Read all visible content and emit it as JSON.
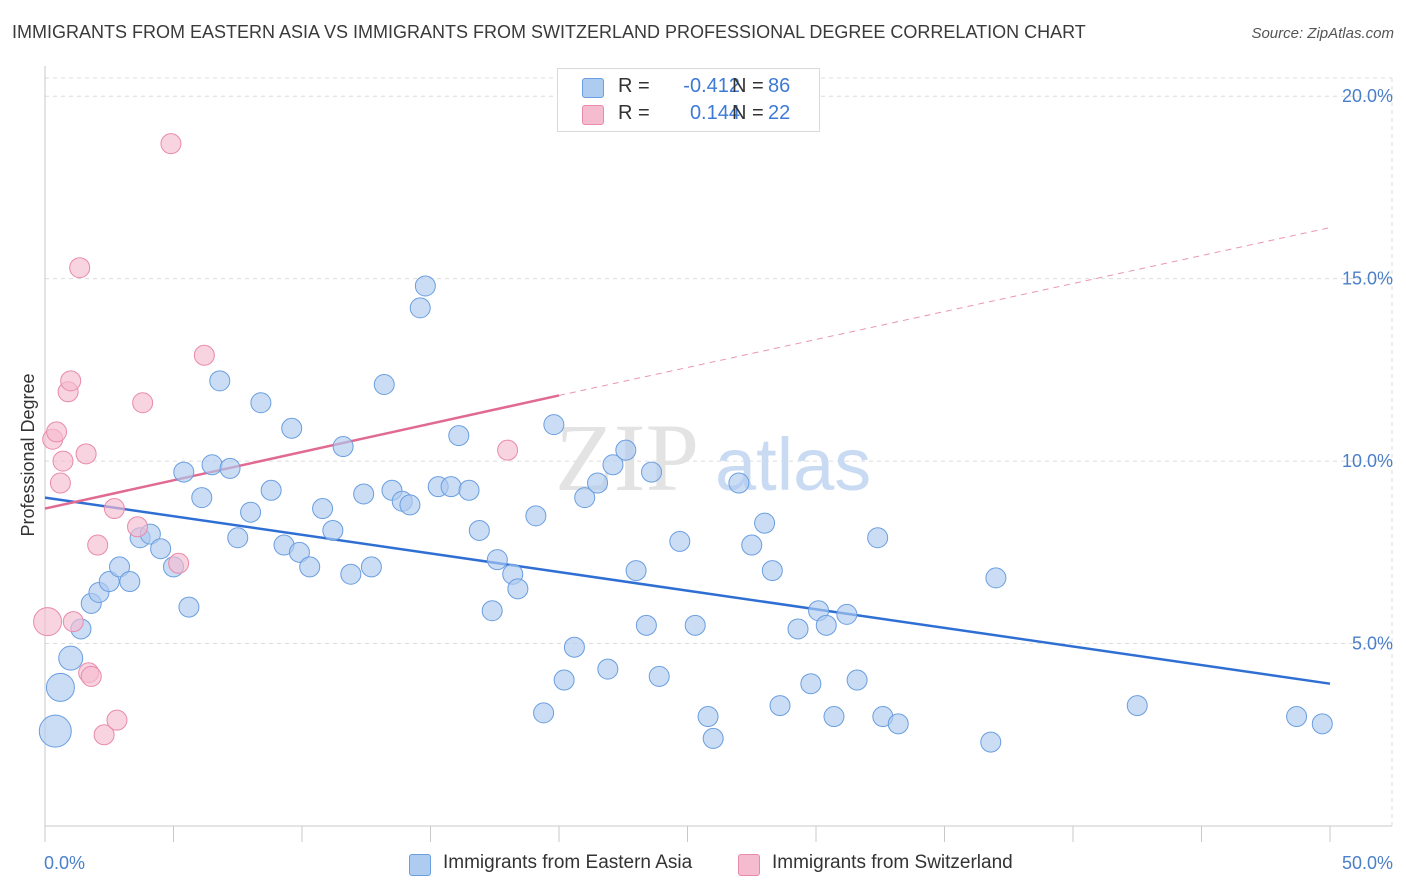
{
  "title": "IMMIGRANTS FROM EASTERN ASIA VS IMMIGRANTS FROM SWITZERLAND PROFESSIONAL DEGREE CORRELATION CHART",
  "source": "Source: ZipAtlas.com",
  "watermark": "ZIPatlas",
  "legend": {
    "rows": [
      {
        "r_label": "R =",
        "r_value": "-0.412",
        "n_label": "N =",
        "n_value": "86"
      },
      {
        "r_label": "R =",
        "r_value": "0.144",
        "n_label": "N =",
        "n_value": "22"
      }
    ]
  },
  "bottom_legend": {
    "items": [
      {
        "label": "Immigrants from Eastern Asia"
      },
      {
        "label": "Immigrants from Switzerland"
      }
    ]
  },
  "colors": {
    "blue_fill": "#aecbf0",
    "blue_stroke": "#6a9ee0",
    "blue_line": "#2f6fd4",
    "pink_fill": "#f5bcd0",
    "pink_stroke": "#e98aab",
    "pink_line": "#e06a92",
    "tick_text": "#4a7fc9",
    "grid": "#dcdcdc"
  },
  "chart_data": {
    "type": "scatter",
    "xlabel": "",
    "ylabel": "Professional Degree",
    "xlim": [
      0,
      50
    ],
    "ylim": [
      0,
      20.5
    ],
    "x_tick_labels": [
      {
        "value": 0,
        "label": "0.0%"
      },
      {
        "value": 50,
        "label": "50.0%"
      }
    ],
    "y_tick_labels": [
      {
        "value": 5,
        "label": "5.0%"
      },
      {
        "value": 10,
        "label": "10.0%"
      },
      {
        "value": 15,
        "label": "15.0%"
      },
      {
        "value": 20,
        "label": "20.0%"
      }
    ],
    "grid": true,
    "legend_position": "top-center",
    "series": [
      {
        "name": "Immigrants from Eastern Asia",
        "color": "#aecbf0",
        "points": [
          [
            0.4,
            2.6,
            16
          ],
          [
            0.6,
            3.8,
            14
          ],
          [
            1.0,
            4.6,
            12
          ],
          [
            1.4,
            5.4,
            10
          ],
          [
            1.8,
            6.1,
            10
          ],
          [
            2.1,
            6.4,
            10
          ],
          [
            2.5,
            6.7,
            10
          ],
          [
            2.9,
            7.1,
            10
          ],
          [
            3.3,
            6.7,
            10
          ],
          [
            3.7,
            7.9,
            10
          ],
          [
            4.1,
            8.0,
            10
          ],
          [
            4.5,
            7.6,
            10
          ],
          [
            5.0,
            7.1,
            10
          ],
          [
            5.4,
            9.7,
            10
          ],
          [
            5.6,
            6.0,
            10
          ],
          [
            6.1,
            9.0,
            10
          ],
          [
            6.5,
            9.9,
            10
          ],
          [
            6.8,
            12.2,
            10
          ],
          [
            7.2,
            9.8,
            10
          ],
          [
            7.5,
            7.9,
            10
          ],
          [
            8.0,
            8.6,
            10
          ],
          [
            8.4,
            11.6,
            10
          ],
          [
            8.8,
            9.2,
            10
          ],
          [
            9.3,
            7.7,
            10
          ],
          [
            9.6,
            10.9,
            10
          ],
          [
            9.9,
            7.5,
            10
          ],
          [
            10.3,
            7.1,
            10
          ],
          [
            10.8,
            8.7,
            10
          ],
          [
            11.2,
            8.1,
            10
          ],
          [
            11.6,
            10.4,
            10
          ],
          [
            11.9,
            6.9,
            10
          ],
          [
            12.4,
            9.1,
            10
          ],
          [
            12.7,
            7.1,
            10
          ],
          [
            13.2,
            12.1,
            10
          ],
          [
            13.5,
            9.2,
            10
          ],
          [
            13.9,
            8.9,
            10
          ],
          [
            14.2,
            8.8,
            10
          ],
          [
            14.6,
            14.2,
            10
          ],
          [
            14.8,
            14.8,
            10
          ],
          [
            15.3,
            9.3,
            10
          ],
          [
            15.8,
            9.3,
            10
          ],
          [
            16.1,
            10.7,
            10
          ],
          [
            16.5,
            9.2,
            10
          ],
          [
            16.9,
            8.1,
            10
          ],
          [
            17.4,
            5.9,
            10
          ],
          [
            17.6,
            7.3,
            10
          ],
          [
            18.2,
            6.9,
            10
          ],
          [
            18.4,
            6.5,
            10
          ],
          [
            19.1,
            8.5,
            10
          ],
          [
            19.4,
            3.1,
            10
          ],
          [
            19.8,
            11.0,
            10
          ],
          [
            20.2,
            4.0,
            10
          ],
          [
            20.6,
            4.9,
            10
          ],
          [
            21.0,
            9.0,
            10
          ],
          [
            21.5,
            9.4,
            10
          ],
          [
            21.9,
            4.3,
            10
          ],
          [
            22.1,
            9.9,
            10
          ],
          [
            22.6,
            10.3,
            10
          ],
          [
            23.0,
            7.0,
            10
          ],
          [
            23.4,
            5.5,
            10
          ],
          [
            23.6,
            9.7,
            10
          ],
          [
            23.9,
            4.1,
            10
          ],
          [
            24.7,
            7.8,
            10
          ],
          [
            25.3,
            5.5,
            10
          ],
          [
            25.8,
            3.0,
            10
          ],
          [
            26.0,
            2.4,
            10
          ],
          [
            27.0,
            9.4,
            10
          ],
          [
            27.5,
            7.7,
            10
          ],
          [
            28.0,
            8.3,
            10
          ],
          [
            28.3,
            7.0,
            10
          ],
          [
            28.6,
            3.3,
            10
          ],
          [
            29.3,
            5.4,
            10
          ],
          [
            29.8,
            3.9,
            10
          ],
          [
            30.1,
            5.9,
            10
          ],
          [
            30.4,
            5.5,
            10
          ],
          [
            30.7,
            3.0,
            10
          ],
          [
            31.2,
            5.8,
            10
          ],
          [
            31.6,
            4.0,
            10
          ],
          [
            32.4,
            7.9,
            10
          ],
          [
            32.6,
            3.0,
            10
          ],
          [
            33.2,
            2.8,
            10
          ],
          [
            36.8,
            2.3,
            10
          ],
          [
            37.0,
            6.8,
            10
          ],
          [
            42.5,
            3.3,
            10
          ],
          [
            48.7,
            3.0,
            10
          ],
          [
            49.7,
            2.8,
            10
          ]
        ]
      },
      {
        "name": "Immigrants from Switzerland",
        "color": "#f5bcd0",
        "points": [
          [
            0.1,
            5.6,
            14
          ],
          [
            0.3,
            10.6,
            10
          ],
          [
            0.45,
            10.8,
            10
          ],
          [
            0.6,
            9.4,
            10
          ],
          [
            0.7,
            10.0,
            10
          ],
          [
            0.9,
            11.9,
            10
          ],
          [
            1.0,
            12.2,
            10
          ],
          [
            1.1,
            5.6,
            10
          ],
          [
            1.35,
            15.3,
            10
          ],
          [
            1.6,
            10.2,
            10
          ],
          [
            1.7,
            4.2,
            10
          ],
          [
            1.8,
            4.1,
            10
          ],
          [
            2.05,
            7.7,
            10
          ],
          [
            2.3,
            2.5,
            10
          ],
          [
            2.7,
            8.7,
            10
          ],
          [
            2.8,
            2.9,
            10
          ],
          [
            3.6,
            8.2,
            10
          ],
          [
            3.8,
            11.6,
            10
          ],
          [
            4.9,
            18.7,
            10
          ],
          [
            5.2,
            7.2,
            10
          ],
          [
            6.2,
            12.9,
            10
          ],
          [
            18.0,
            10.3,
            10
          ]
        ]
      }
    ],
    "trend_lines": [
      {
        "series": "Immigrants from Eastern Asia",
        "x": [
          0,
          50
        ],
        "y": [
          9.0,
          3.9
        ],
        "style": "solid"
      },
      {
        "series": "Immigrants from Switzerland",
        "x": [
          0,
          20
        ],
        "y": [
          8.7,
          11.8
        ],
        "style": "solid"
      },
      {
        "series": "Immigrants from Switzerland",
        "x": [
          20,
          50
        ],
        "y": [
          11.8,
          16.4
        ],
        "style": "dashed"
      }
    ]
  }
}
